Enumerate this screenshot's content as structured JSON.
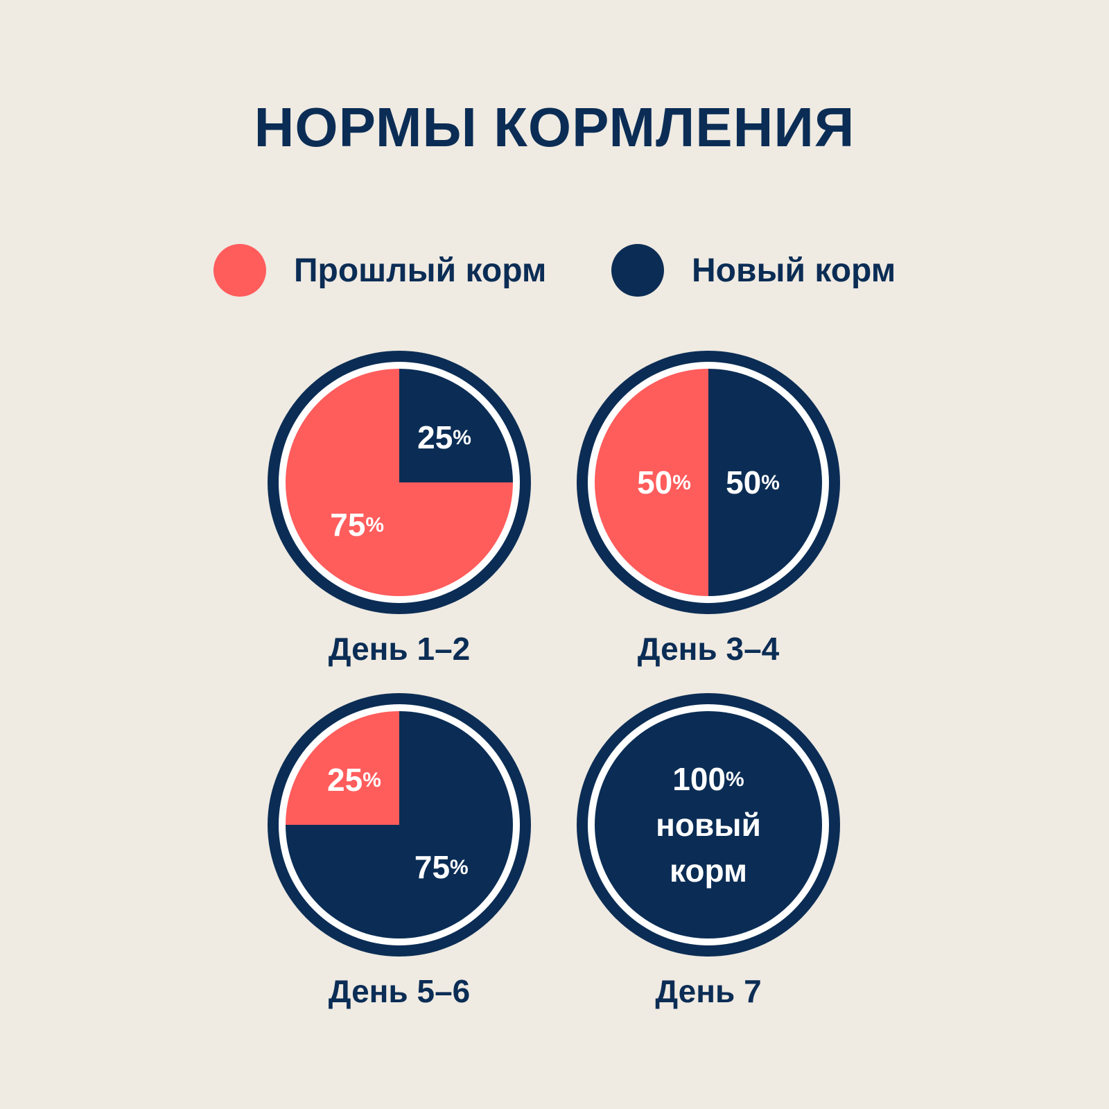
{
  "title": "НОРМЫ КОРМЛЕНИЯ",
  "colors": {
    "background": "#EFEAE2",
    "old_food": "#FF5C5C",
    "new_food": "#0B2D55",
    "text_dark": "#0B2D55",
    "text_light": "#FFFFFF"
  },
  "legend": [
    {
      "label": "Прошлый корм",
      "color": "#FF5C5C"
    },
    {
      "label": "Новый корм",
      "color": "#0B2D55"
    }
  ],
  "chart_data": {
    "type": "pie",
    "title": "НОРМЫ КОРМЛЕНИЯ",
    "series_names": [
      "Прошлый корм",
      "Новый корм"
    ],
    "charts": [
      {
        "label": "День 1–2",
        "old": 75,
        "new": 25,
        "old_text": "75",
        "new_text": "25",
        "unit": "%"
      },
      {
        "label": "День 3–4",
        "old": 50,
        "new": 50,
        "old_text": "50",
        "new_text": "50",
        "unit": "%"
      },
      {
        "label": "День 5–6",
        "old": 25,
        "new": 75,
        "old_text": "25",
        "new_text": "75",
        "unit": "%"
      },
      {
        "label": "День 7",
        "old": 0,
        "new": 100,
        "center_lines": [
          "100%",
          "новый",
          "корм"
        ]
      }
    ]
  }
}
